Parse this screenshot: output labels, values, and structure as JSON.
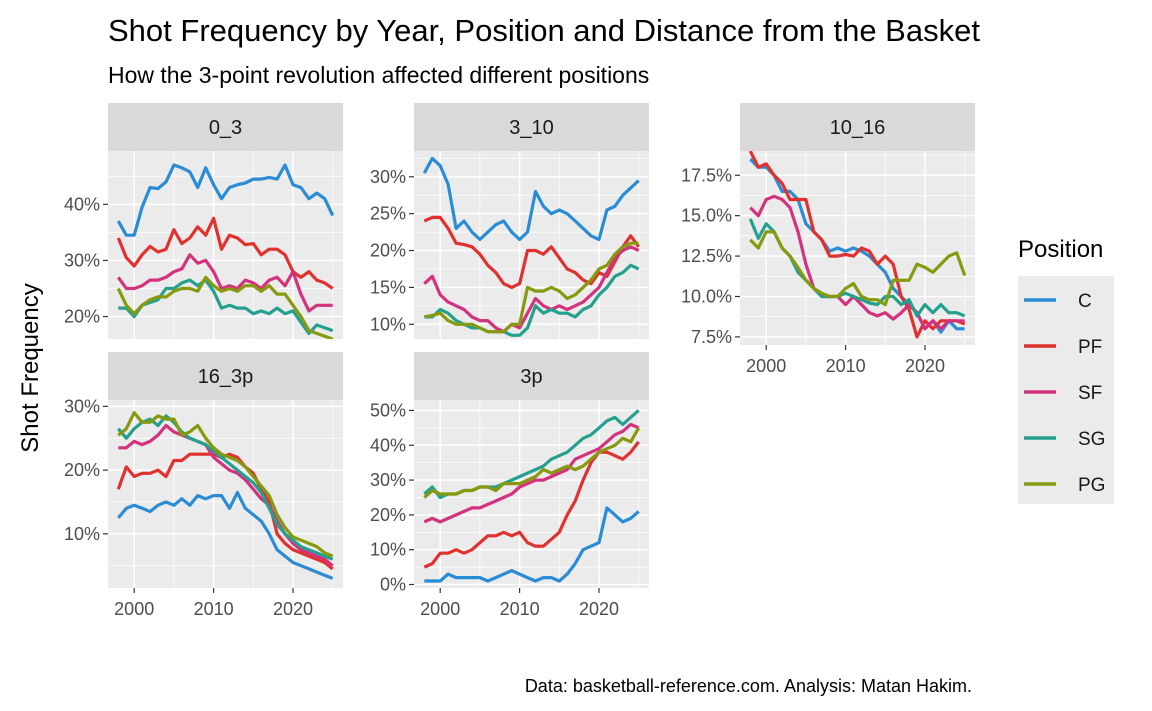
{
  "title": "Shot Frequency by Year, Position and Distance from the Basket",
  "subtitle": "How the 3-point revolution affected different positions",
  "caption": "Data: basketball-reference.com. Analysis: Matan Hakim.",
  "colors": {
    "C": "#2b8cd6",
    "PF": "#e0312f",
    "SF": "#d4327e",
    "SG": "#24a08f",
    "PG": "#879a0e"
  },
  "chart_data": {
    "type": "line",
    "xlabel": "",
    "ylabel": "Shot Frequency",
    "legend_title": "Position",
    "legend_placement": "right",
    "grid": true,
    "series_names": [
      "C",
      "PF",
      "SF",
      "SG",
      "PG"
    ],
    "x": [
      1998,
      1999,
      2000,
      2001,
      2002,
      2003,
      2004,
      2005,
      2006,
      2007,
      2008,
      2009,
      2010,
      2011,
      2012,
      2013,
      2014,
      2015,
      2016,
      2017,
      2018,
      2019,
      2020,
      2021,
      2022,
      2023,
      2024,
      2025
    ],
    "panels": [
      {
        "label": "0_3",
        "ylim": [
          0.16,
          0.495
        ],
        "y_ticks": [
          0.2,
          0.3,
          0.4
        ],
        "y_tick_labels": [
          "20%",
          "30%",
          "40%"
        ],
        "series": [
          {
            "name": "C",
            "values": [
              0.37,
              0.345,
              0.345,
              0.395,
              0.43,
              0.428,
              0.44,
              0.47,
              0.465,
              0.458,
              0.43,
              0.465,
              0.435,
              0.41,
              0.43,
              0.435,
              0.438,
              0.445,
              0.445,
              0.448,
              0.445,
              0.47,
              0.435,
              0.43,
              0.41,
              0.42,
              0.41,
              0.38
            ]
          },
          {
            "name": "PF",
            "values": [
              0.34,
              0.305,
              0.29,
              0.31,
              0.325,
              0.315,
              0.32,
              0.355,
              0.33,
              0.34,
              0.36,
              0.345,
              0.375,
              0.32,
              0.345,
              0.34,
              0.328,
              0.33,
              0.31,
              0.32,
              0.32,
              0.31,
              0.28,
              0.27,
              0.28,
              0.265,
              0.26,
              0.25
            ]
          },
          {
            "name": "SF",
            "values": [
              0.27,
              0.25,
              0.25,
              0.255,
              0.265,
              0.265,
              0.27,
              0.28,
              0.285,
              0.31,
              0.295,
              0.3,
              0.28,
              0.25,
              0.255,
              0.25,
              0.265,
              0.26,
              0.25,
              0.265,
              0.27,
              0.255,
              0.28,
              0.24,
              0.21,
              0.22,
              0.22,
              0.22
            ]
          },
          {
            "name": "SG",
            "values": [
              0.215,
              0.215,
              0.2,
              0.22,
              0.225,
              0.23,
              0.25,
              0.25,
              0.26,
              0.265,
              0.255,
              0.265,
              0.245,
              0.215,
              0.22,
              0.215,
              0.215,
              0.205,
              0.21,
              0.205,
              0.215,
              0.205,
              0.21,
              0.19,
              0.17,
              0.185,
              0.18,
              0.175
            ]
          },
          {
            "name": "PG",
            "values": [
              0.25,
              0.22,
              0.205,
              0.22,
              0.23,
              0.235,
              0.235,
              0.245,
              0.25,
              0.25,
              0.245,
              0.27,
              0.255,
              0.245,
              0.25,
              0.245,
              0.255,
              0.255,
              0.245,
              0.255,
              0.24,
              0.24,
              0.22,
              0.2,
              0.175,
              0.17,
              0.165,
              0.16
            ]
          }
        ]
      },
      {
        "label": "3_10",
        "ylim": [
          0.08,
          0.335
        ],
        "y_ticks": [
          0.1,
          0.15,
          0.2,
          0.25,
          0.3
        ],
        "y_tick_labels": [
          "10%",
          "15%",
          "20%",
          "25%",
          "30%"
        ],
        "series": [
          {
            "name": "C",
            "values": [
              0.305,
              0.325,
              0.315,
              0.29,
              0.23,
              0.24,
              0.225,
              0.215,
              0.225,
              0.235,
              0.24,
              0.225,
              0.215,
              0.225,
              0.28,
              0.26,
              0.25,
              0.255,
              0.25,
              0.24,
              0.23,
              0.22,
              0.215,
              0.255,
              0.26,
              0.275,
              0.285,
              0.295
            ]
          },
          {
            "name": "PF",
            "values": [
              0.24,
              0.245,
              0.245,
              0.23,
              0.21,
              0.208,
              0.205,
              0.195,
              0.18,
              0.17,
              0.155,
              0.15,
              0.155,
              0.2,
              0.2,
              0.195,
              0.205,
              0.19,
              0.175,
              0.17,
              0.16,
              0.155,
              0.17,
              0.165,
              0.185,
              0.205,
              0.22,
              0.205
            ]
          },
          {
            "name": "SF",
            "values": [
              0.155,
              0.165,
              0.14,
              0.13,
              0.125,
              0.12,
              0.11,
              0.105,
              0.105,
              0.095,
              0.09,
              0.1,
              0.095,
              0.115,
              0.135,
              0.125,
              0.12,
              0.125,
              0.12,
              0.125,
              0.13,
              0.14,
              0.15,
              0.17,
              0.19,
              0.2,
              0.205,
              0.2
            ]
          },
          {
            "name": "SG",
            "values": [
              0.11,
              0.11,
              0.12,
              0.115,
              0.105,
              0.1,
              0.095,
              0.095,
              0.09,
              0.09,
              0.09,
              0.085,
              0.085,
              0.095,
              0.125,
              0.115,
              0.12,
              0.115,
              0.115,
              0.11,
              0.12,
              0.125,
              0.14,
              0.15,
              0.165,
              0.17,
              0.18,
              0.175
            ]
          },
          {
            "name": "PG",
            "values": [
              0.11,
              0.112,
              0.115,
              0.105,
              0.1,
              0.1,
              0.1,
              0.095,
              0.09,
              0.09,
              0.09,
              0.1,
              0.1,
              0.15,
              0.145,
              0.145,
              0.15,
              0.145,
              0.135,
              0.14,
              0.15,
              0.16,
              0.175,
              0.18,
              0.195,
              0.205,
              0.21,
              0.21
            ]
          }
        ]
      },
      {
        "label": "10_16",
        "ylim": [
          0.07,
          0.19
        ],
        "y_ticks": [
          0.075,
          0.1,
          0.125,
          0.15,
          0.175
        ],
        "y_tick_labels": [
          "7.5%",
          "10.0%",
          "12.5%",
          "15.0%",
          "17.5%"
        ],
        "series": [
          {
            "name": "C",
            "values": [
              0.185,
              0.18,
              0.18,
              0.175,
              0.165,
              0.165,
              0.16,
              0.145,
              0.14,
              0.135,
              0.128,
              0.13,
              0.128,
              0.13,
              0.128,
              0.125,
              0.12,
              0.115,
              0.105,
              0.1,
              0.095,
              0.09,
              0.08,
              0.085,
              0.078,
              0.085,
              0.08,
              0.08
            ]
          },
          {
            "name": "PF",
            "values": [
              0.19,
              0.18,
              0.182,
              0.175,
              0.17,
              0.16,
              0.16,
              0.16,
              0.14,
              0.135,
              0.125,
              0.125,
              0.126,
              0.125,
              0.13,
              0.128,
              0.12,
              0.125,
              0.12,
              0.1,
              0.092,
              0.075,
              0.085,
              0.08,
              0.085,
              0.085,
              0.085,
              0.083
            ]
          },
          {
            "name": "SF",
            "values": [
              0.155,
              0.15,
              0.16,
              0.162,
              0.16,
              0.155,
              0.14,
              0.12,
              0.105,
              0.1,
              0.1,
              0.1,
              0.095,
              0.1,
              0.095,
              0.09,
              0.088,
              0.09,
              0.086,
              0.09,
              0.095,
              0.09,
              0.08,
              0.085,
              0.08,
              0.085,
              0.085,
              0.085
            ]
          },
          {
            "name": "SG",
            "values": [
              0.148,
              0.136,
              0.145,
              0.14,
              0.13,
              0.125,
              0.115,
              0.11,
              0.105,
              0.1,
              0.1,
              0.1,
              0.102,
              0.1,
              0.098,
              0.096,
              0.095,
              0.1,
              0.1,
              0.095,
              0.098,
              0.088,
              0.095,
              0.09,
              0.095,
              0.09,
              0.09,
              0.088
            ]
          },
          {
            "name": "PG",
            "values": [
              0.135,
              0.13,
              0.14,
              0.14,
              0.13,
              0.125,
              0.118,
              0.11,
              0.105,
              0.102,
              0.1,
              0.1,
              0.105,
              0.108,
              0.1,
              0.098,
              0.098,
              0.095,
              0.11,
              0.11,
              0.11,
              0.12,
              0.118,
              0.115,
              0.12,
              0.125,
              0.127,
              0.113
            ]
          }
        ]
      },
      {
        "label": "16_3p",
        "ylim": [
          0.015,
          0.31
        ],
        "y_ticks": [
          0.1,
          0.2,
          0.3
        ],
        "y_tick_labels": [
          "10%",
          "20%",
          "30%"
        ],
        "series": [
          {
            "name": "C",
            "values": [
              0.125,
              0.14,
              0.145,
              0.14,
              0.135,
              0.145,
              0.15,
              0.145,
              0.155,
              0.145,
              0.16,
              0.155,
              0.16,
              0.16,
              0.14,
              0.165,
              0.14,
              0.13,
              0.12,
              0.1,
              0.075,
              0.065,
              0.055,
              0.05,
              0.045,
              0.04,
              0.035,
              0.03
            ]
          },
          {
            "name": "PF",
            "values": [
              0.17,
              0.205,
              0.19,
              0.195,
              0.195,
              0.2,
              0.19,
              0.215,
              0.215,
              0.225,
              0.225,
              0.225,
              0.225,
              0.22,
              0.225,
              0.22,
              0.205,
              0.195,
              0.17,
              0.15,
              0.1,
              0.085,
              0.075,
              0.07,
              0.065,
              0.06,
              0.055,
              0.045
            ]
          },
          {
            "name": "SF",
            "values": [
              0.235,
              0.235,
              0.245,
              0.24,
              0.245,
              0.255,
              0.27,
              0.26,
              0.255,
              0.25,
              0.245,
              0.24,
              0.22,
              0.21,
              0.2,
              0.195,
              0.185,
              0.17,
              0.155,
              0.145,
              0.12,
              0.1,
              0.085,
              0.075,
              0.07,
              0.065,
              0.06,
              0.05
            ]
          },
          {
            "name": "SG",
            "values": [
              0.265,
              0.25,
              0.265,
              0.275,
              0.28,
              0.27,
              0.285,
              0.275,
              0.26,
              0.25,
              0.245,
              0.24,
              0.23,
              0.22,
              0.21,
              0.2,
              0.19,
              0.18,
              0.165,
              0.14,
              0.115,
              0.1,
              0.09,
              0.08,
              0.075,
              0.07,
              0.065,
              0.06
            ]
          },
          {
            "name": "PG",
            "values": [
              0.255,
              0.265,
              0.29,
              0.275,
              0.275,
              0.285,
              0.28,
              0.28,
              0.255,
              0.26,
              0.27,
              0.25,
              0.235,
              0.225,
              0.22,
              0.215,
              0.205,
              0.19,
              0.175,
              0.16,
              0.13,
              0.11,
              0.095,
              0.09,
              0.085,
              0.08,
              0.07,
              0.065
            ]
          }
        ]
      },
      {
        "label": "3p",
        "ylim": [
          -0.01,
          0.53
        ],
        "y_ticks": [
          0.0,
          0.1,
          0.2,
          0.3,
          0.4,
          0.5
        ],
        "y_tick_labels": [
          "0%",
          "10%",
          "20%",
          "30%",
          "40%",
          "50%"
        ],
        "series": [
          {
            "name": "C",
            "values": [
              0.01,
              0.01,
              0.01,
              0.03,
              0.02,
              0.02,
              0.02,
              0.02,
              0.01,
              0.02,
              0.03,
              0.04,
              0.03,
              0.02,
              0.01,
              0.02,
              0.02,
              0.01,
              0.03,
              0.06,
              0.1,
              0.11,
              0.12,
              0.22,
              0.2,
              0.18,
              0.19,
              0.21
            ]
          },
          {
            "name": "PF",
            "values": [
              0.05,
              0.06,
              0.09,
              0.09,
              0.1,
              0.09,
              0.1,
              0.12,
              0.14,
              0.14,
              0.15,
              0.14,
              0.15,
              0.12,
              0.11,
              0.11,
              0.13,
              0.15,
              0.2,
              0.24,
              0.3,
              0.35,
              0.38,
              0.38,
              0.37,
              0.36,
              0.38,
              0.41
            ]
          },
          {
            "name": "SF",
            "values": [
              0.18,
              0.19,
              0.18,
              0.19,
              0.2,
              0.21,
              0.22,
              0.22,
              0.23,
              0.24,
              0.25,
              0.26,
              0.28,
              0.29,
              0.3,
              0.3,
              0.31,
              0.32,
              0.33,
              0.36,
              0.37,
              0.38,
              0.39,
              0.41,
              0.43,
              0.44,
              0.46,
              0.45
            ]
          },
          {
            "name": "SG",
            "values": [
              0.26,
              0.28,
              0.25,
              0.26,
              0.26,
              0.27,
              0.27,
              0.28,
              0.28,
              0.28,
              0.29,
              0.3,
              0.31,
              0.32,
              0.33,
              0.34,
              0.36,
              0.37,
              0.38,
              0.4,
              0.42,
              0.43,
              0.45,
              0.47,
              0.48,
              0.46,
              0.48,
              0.5
            ]
          },
          {
            "name": "PG",
            "values": [
              0.25,
              0.27,
              0.26,
              0.26,
              0.26,
              0.27,
              0.27,
              0.28,
              0.28,
              0.27,
              0.29,
              0.29,
              0.29,
              0.3,
              0.31,
              0.33,
              0.32,
              0.33,
              0.34,
              0.33,
              0.34,
              0.36,
              0.38,
              0.39,
              0.4,
              0.42,
              0.41,
              0.45
            ]
          }
        ]
      }
    ],
    "x_ticks": [
      2000,
      2010,
      2020
    ],
    "x_tick_labels": [
      "2000",
      "2010",
      "2020"
    ],
    "xlim": [
      1996.7,
      2026.3
    ]
  }
}
